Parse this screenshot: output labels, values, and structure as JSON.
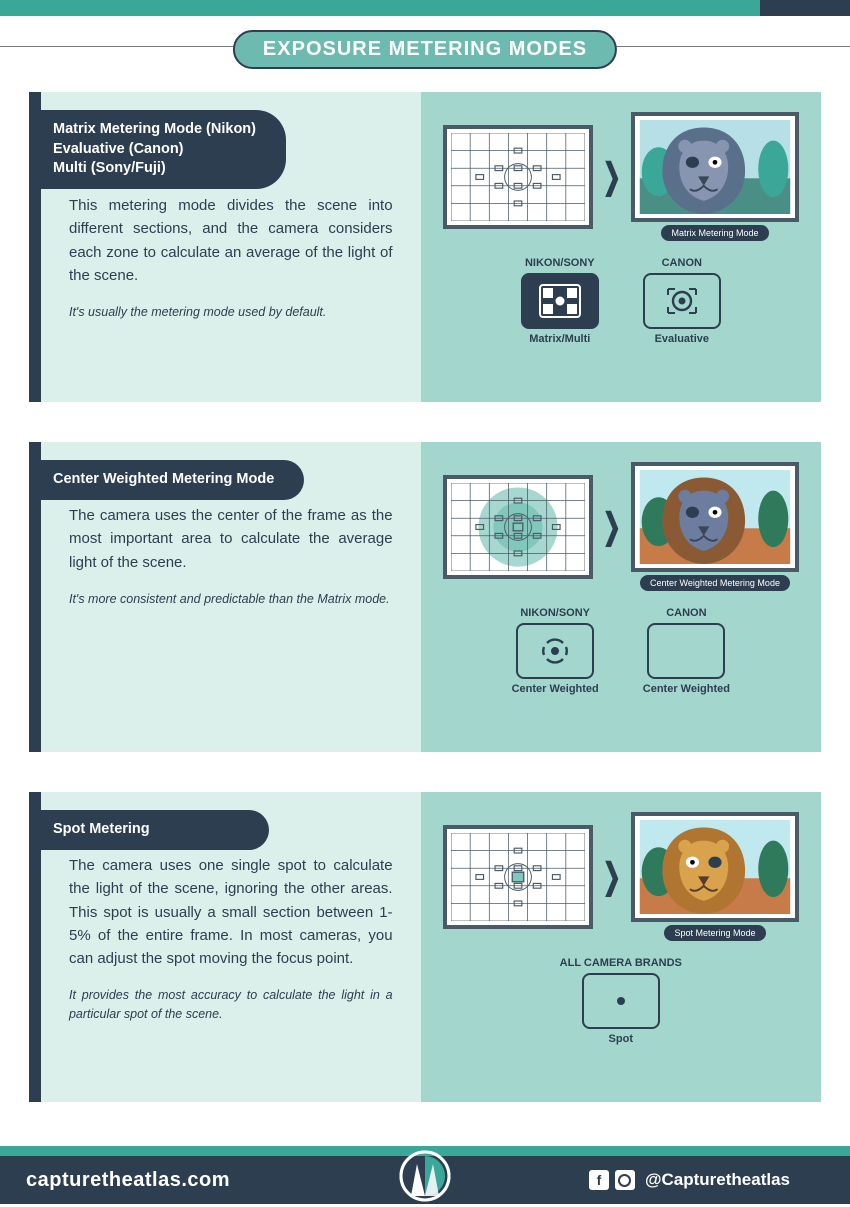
{
  "colors": {
    "teal": "#3ba798",
    "teal_light": "#a3d7ce",
    "teal_lighter": "#dbf0eb",
    "pill": "#6cbab0",
    "dark": "#2c3e50",
    "white": "#ffffff",
    "rule": "#7a7a7a",
    "center_tint": "#82c7bc"
  },
  "title": "EXPOSURE METERING MODES",
  "cards": [
    {
      "badge": "Matrix Metering Mode (Nikon)\nEvaluative (Canon)\nMulti (Sony/Fuji)",
      "desc": "This metering mode divides the scene into different sections, and the camera considers each zone to calculate an average of the light of the scene.",
      "note": "It's usually the metering mode used by default.",
      "grid_style": "matrix",
      "photo_caption": "Matrix Metering Mode",
      "lion_palette": "cool",
      "icons": [
        {
          "brand": "NIKON/SONY",
          "mode": "Matrix/Multi",
          "style": "filled",
          "glyph": "matrix"
        },
        {
          "brand": "CANON",
          "mode": "Evaluative",
          "style": "outline",
          "glyph": "evaluative"
        }
      ]
    },
    {
      "badge": "Center Weighted Metering Mode",
      "desc": "The camera uses the center of the frame as the most important area to calculate the average light of the scene.",
      "note": "It's more consistent and predictable than the Matrix mode.",
      "grid_style": "center",
      "photo_caption": "Center Weighted Metering Mode",
      "lion_palette": "mixed",
      "icons": [
        {
          "brand": "NIKON/SONY",
          "mode": "Center Weighted",
          "style": "outline",
          "glyph": "center_ns"
        },
        {
          "brand": "CANON",
          "mode": "Center Weighted",
          "style": "outline",
          "glyph": "blank"
        }
      ]
    },
    {
      "badge": "Spot Metering",
      "desc": "The camera uses one single spot to calculate the light of the scene, ignoring the other areas. This spot is usually a small section between 1-5% of the entire frame. In most cameras, you can adjust the spot moving the focus point.",
      "note": "It provides the most accuracy to calculate the light in a particular spot of the scene.",
      "grid_style": "spot",
      "photo_caption": "Spot Metering Mode",
      "lion_palette": "warm",
      "icons": [
        {
          "brand": "ALL CAMERA BRANDS",
          "mode": "Spot",
          "style": "outline",
          "glyph": "spot"
        }
      ]
    }
  ],
  "lion_colors": {
    "cool": {
      "sky": "#b7e0e6",
      "bush": "#3ba798",
      "ground": "#4a8f86",
      "mane": "#5a6f8a",
      "face": "#8795b0",
      "nose": "#3a4658",
      "eye_sclera": "#2c3e50",
      "eye_iris": "#000"
    },
    "mixed": {
      "sky": "#c0e8ef",
      "bush": "#2e7a5a",
      "ground": "#c77b48",
      "mane": "#8a5a35",
      "face": "#6c7da0",
      "nose": "#3a4658",
      "eye_sclera": "#2c3e50",
      "eye_iris": "#000"
    },
    "warm": {
      "sky": "#c0e8ef",
      "bush": "#2e7a5a",
      "ground": "#c77b48",
      "mane": "#b07530",
      "face": "#d9a24d",
      "nose": "#5a3a28",
      "eye_sclera": "#2c3e50",
      "eye_iris": "#000"
    }
  },
  "footer": {
    "site": "capturetheatlas.com",
    "handle": "@Capturetheatlas"
  }
}
